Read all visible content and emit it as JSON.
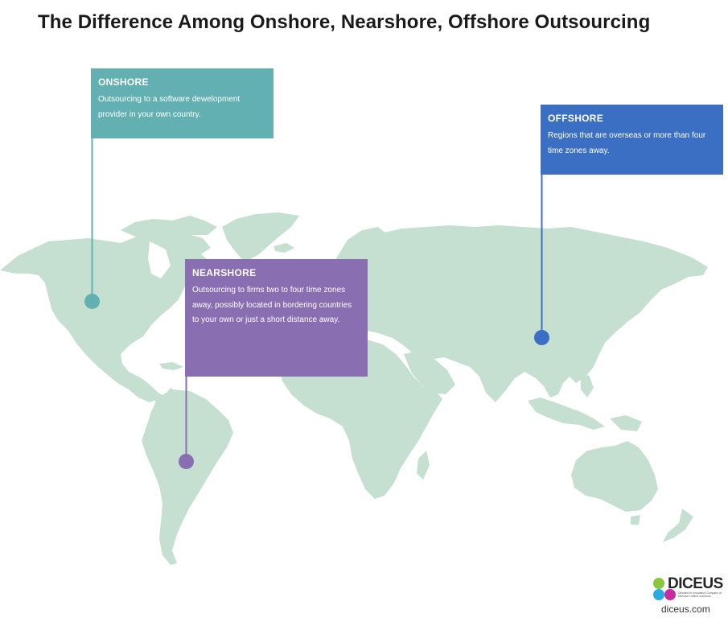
{
  "title": "The Difference Among Onshore, Nearshore, Offshore Outsourcing",
  "colors": {
    "land": "#c5e0d1",
    "onshore": "#62b0b1",
    "nearshore": "#8a6eb2",
    "offshore": "#3a6fc3"
  },
  "callouts": {
    "onshore": {
      "heading": "ONSHORE",
      "text": "Outsourcing to a software dewelopment provider in your own country."
    },
    "nearshore": {
      "heading": "NEARSHORE",
      "text": "Outsourcing to firms two to four time zones away, possibly located in bordering countries to your own or just a short distance away."
    },
    "offshore": {
      "heading": "OFFSHORE",
      "text": "Regions that are overseas or more than four time zones away."
    }
  },
  "logo": {
    "name": "DICEUS",
    "tagline": "Devoted to Innovation Company of Effective Unified Solutions",
    "url": "diceus.com"
  }
}
